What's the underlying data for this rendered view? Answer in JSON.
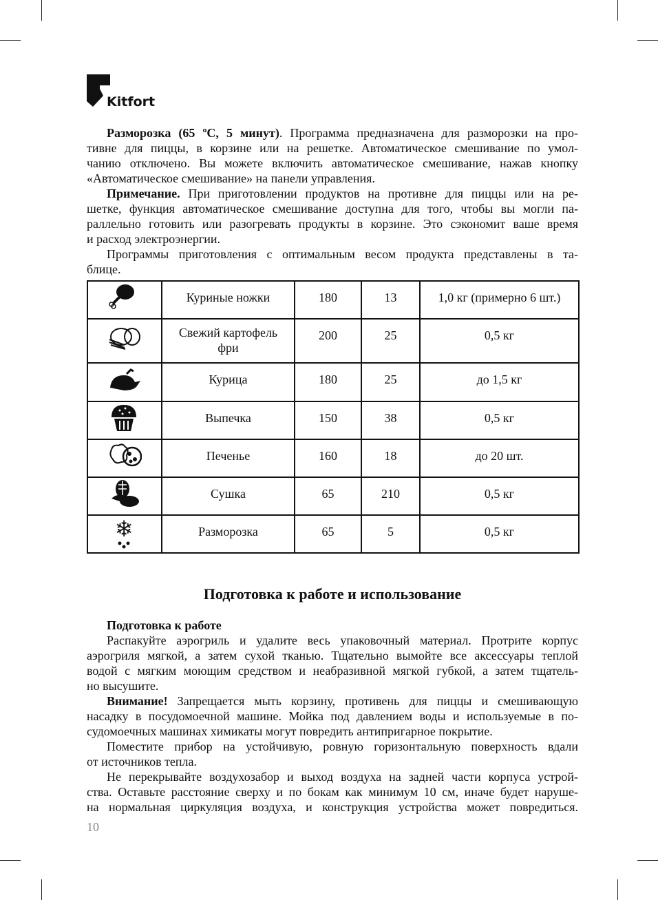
{
  "brand": {
    "logo_text": "Kitfort"
  },
  "intro": [
    [
      {
        "b": "Размороზка (65 ºС, 5 минут)"
      }
    ]
  ],
  "p1": {
    "bold": "Разморозка (65 ºС, 5 минут)",
    "lines": [
      ". Программа предназначена для разморозки на про-",
      "тивне для пиццы, в корзине или на решетке. Автоматическое смешивание по умол-",
      "чанию отключено. Вы можете включить автоматическое смешивание, нажав кнопку",
      "«Автоматическое смешивание» на панели управления."
    ]
  },
  "p2": {
    "bold": "Примечание.",
    "lines": [
      " При приготовлении продуктов на противне для пиццы или на ре-",
      "шетке, функция автоматическое смешивание доступна для того, чтобы вы могли па-",
      "раллельно готовить или разогревать продукты в корзине. Это сэкономит ваше время",
      "и расход электроэнергии."
    ]
  },
  "p3": {
    "lines": [
      "Программы приготовления с оптимальным весом продукта представлены в та-",
      "блице."
    ]
  },
  "table": {
    "rows": [
      {
        "icon": "chicken-leg-icon",
        "name": "Куриные ножки",
        "temp": "180",
        "time": "13",
        "weight": "1,0 кг (примерно 6 шт.)"
      },
      {
        "icon": "potato-fries-icon",
        "name": "Свежий картофель фри",
        "temp": "200",
        "time": "25",
        "weight": "0,5 кг"
      },
      {
        "icon": "roast-chicken-icon",
        "name": "Курица",
        "temp": "180",
        "time": "25",
        "weight": "до 1,5 кг"
      },
      {
        "icon": "cupcake-icon",
        "name": "Выпечка",
        "temp": "150",
        "time": "38",
        "weight": "0,5 кг"
      },
      {
        "icon": "cookies-icon",
        "name": "Печенье",
        "temp": "160",
        "time": "18",
        "weight": "до 20 шт."
      },
      {
        "icon": "vegetables-icon",
        "name": "Сушка",
        "temp": "65",
        "time": "210",
        "weight": "0,5 кг"
      },
      {
        "icon": "snowflake-icon",
        "name": "Разморозка",
        "temp": "65",
        "time": "5",
        "weight": "0,5 кг"
      }
    ]
  },
  "section": {
    "title": "Подготовка к работе и использование",
    "subtitle": "Подготовка к работе"
  },
  "s1": {
    "lines": [
      "Распакуйте аэрогриль и удалите весь упаковочный материал. Протрите корпус",
      "аэрогриля мягкой, а затем сухой тканью. Тщательно вымойте все аксессуары теплой",
      "водой с мягким моющим средством и неабразивной мягкой губкой, а затем тщатель-",
      "но высушите."
    ]
  },
  "s2": {
    "bold": "Внимание!",
    "lines": [
      " Запрещается мыть корзину, противень для пиццы и смешивающую",
      "насадку в посудомоечной машине. Мойка под давлением воды и используемые в по-",
      "судомоечных машинах химикаты могут повредить антипригарное покрытие."
    ]
  },
  "s3": {
    "lines": [
      "Поместите прибор на устойчивую, ровную горизонтальную поверхность вдали",
      "от источников тепла."
    ]
  },
  "s4": {
    "lines": [
      "Не перекрывайте воздухозабор и выход воздуха на задней части корпуса устрой-",
      "ства. Оставьте расстояние сверху и по бокам как минимум 10 см, иначе будет наруше-",
      "на нормальная циркуляция воздуха, и конструкция устройства может повредиться."
    ]
  },
  "page_number": "10"
}
